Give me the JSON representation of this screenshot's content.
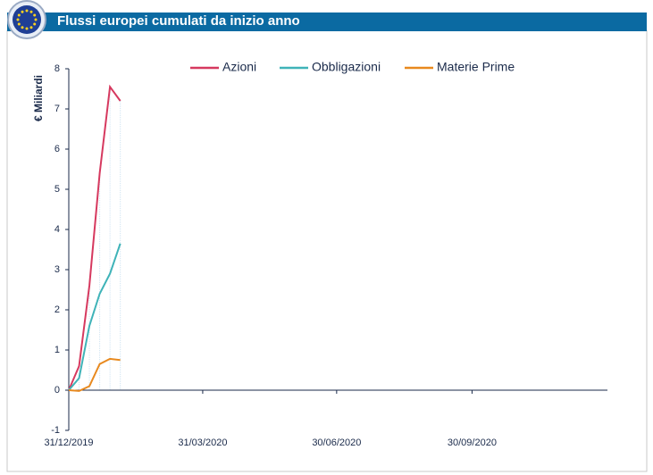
{
  "chart_data": {
    "type": "line",
    "title": "Flussi europei cumulati da inizio anno",
    "y_label": "€ Miliardi",
    "x": [
      "2019-12-31",
      "2020-01-07",
      "2020-01-14",
      "2020-01-21",
      "2020-01-28",
      "2020-02-04"
    ],
    "series": [
      {
        "name": "Azioni",
        "color": "#d6395f",
        "values": [
          0,
          0.6,
          2.6,
          5.4,
          7.55,
          7.2
        ]
      },
      {
        "name": "Obbligazioni",
        "color": "#3fb3b8",
        "values": [
          0,
          0.3,
          1.6,
          2.4,
          2.9,
          3.65
        ]
      },
      {
        "name": "Materie Prime",
        "color": "#e8891e",
        "values": [
          0,
          -0.02,
          0.1,
          0.65,
          0.78,
          0.75
        ]
      }
    ],
    "xlim": [
      "2019-12-31",
      "2020-12-31"
    ],
    "xticks": [
      {
        "value": "2019-12-31",
        "label": "31/12/2019"
      },
      {
        "value": "2020-03-31",
        "label": "31/03/2020"
      },
      {
        "value": "2020-06-30",
        "label": "30/06/2020"
      },
      {
        "value": "2020-09-30",
        "label": "30/09/2020"
      }
    ],
    "ylim": [
      -1,
      8
    ],
    "yticks": [
      -1,
      0,
      1,
      2,
      3,
      4,
      5,
      6,
      7,
      8
    ],
    "legend": "top",
    "grid": false
  }
}
